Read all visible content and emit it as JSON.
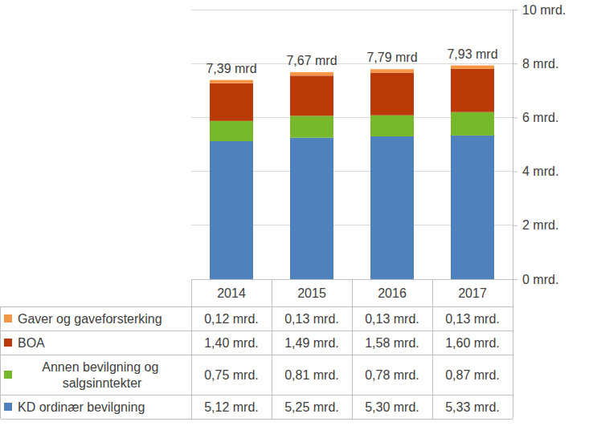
{
  "chart_data": {
    "type": "bar",
    "stacked": true,
    "grid": true,
    "categories": [
      "2014",
      "2015",
      "2016",
      "2017"
    ],
    "series": [
      {
        "name": "Gaver og gaveforsterking",
        "color": "#f79646",
        "values": [
          0.12,
          0.13,
          0.13,
          0.13
        ],
        "value_labels": [
          "0,12 mrd.",
          "0,13 mrd.",
          "0,13 mrd.",
          "0,13 mrd."
        ]
      },
      {
        "name": "BOA",
        "color": "#b93a06",
        "values": [
          1.4,
          1.49,
          1.58,
          1.6
        ],
        "value_labels": [
          "1,40 mrd.",
          "1,49 mrd.",
          "1,58 mrd.",
          "1,60 mrd."
        ]
      },
      {
        "name": "Annen bevilgning og salgsinntekter",
        "color": "#76b82a",
        "values": [
          0.75,
          0.81,
          0.78,
          0.87
        ],
        "value_labels": [
          "0,75 mrd.",
          "0,81 mrd.",
          "0,78 mrd.",
          "0,87 mrd."
        ]
      },
      {
        "name": "KD ordinær bevilgning",
        "color": "#4f81bd",
        "values": [
          5.12,
          5.25,
          5.3,
          5.33
        ],
        "value_labels": [
          "5,12 mrd.",
          "5,25 mrd.",
          "5,30 mrd.",
          "5,33 mrd."
        ]
      }
    ],
    "ylim": [
      0,
      10
    ],
    "yticks": [
      {
        "value": 0,
        "label": "0 mrd."
      },
      {
        "value": 2,
        "label": "2 mrd."
      },
      {
        "value": 4,
        "label": "4 mrd."
      },
      {
        "value": 6,
        "label": "6 mrd."
      },
      {
        "value": 8,
        "label": "8 mrd."
      },
      {
        "value": 10,
        "label": "10 mrd."
      }
    ],
    "annotations": [
      {
        "text": "7,39 mrd",
        "x": "2014",
        "y": 7.39
      },
      {
        "text": "7,67 mrd",
        "x": "2015",
        "y": 7.67
      },
      {
        "text": "7,79 mrd",
        "x": "2016",
        "y": 7.79
      },
      {
        "text": "7,93 mrd",
        "x": "2017",
        "y": 7.93
      }
    ]
  }
}
